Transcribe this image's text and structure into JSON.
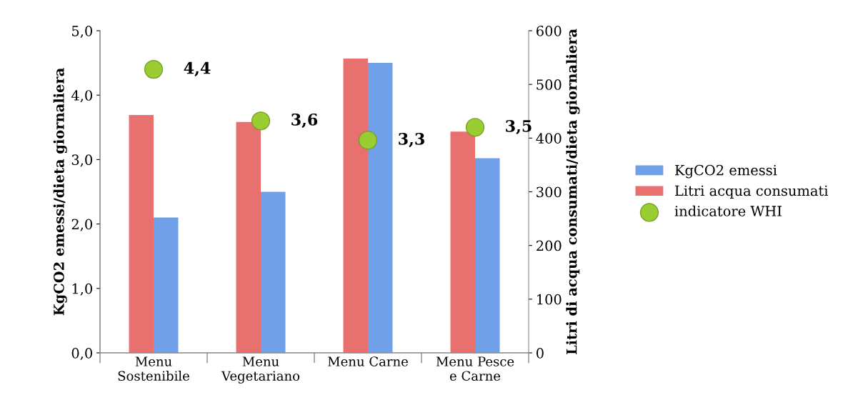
{
  "chart_data": {
    "type": "bar",
    "categories": [
      "Menu\nSostenibile",
      "Menu\nVegetariano",
      "Menu Carne",
      "Menu Pesce\ne Carne"
    ],
    "series": [
      {
        "name": "KgCO2 emessi",
        "color": "#6fa0e8",
        "values": [
          2.1,
          2.5,
          4.5,
          3.02
        ]
      },
      {
        "name": "Litri acqua consumati",
        "color": "#e8706e",
        "values": [
          443,
          430,
          548,
          412
        ],
        "axis": "y2"
      },
      {
        "name": "indicatore WHI",
        "type": "scatter",
        "color": "#9acd32",
        "values": [
          4.4,
          3.6,
          3.3,
          3.5
        ],
        "value_labels": [
          "4,4",
          "3,6",
          "3,3",
          "3,5"
        ]
      }
    ],
    "ylabel": "KgCO2 emessi/dieta giornaliera",
    "y2label": "Litri di acqua consumati/dieta giornaliera",
    "ylim": [
      0,
      5
    ],
    "yticks": [
      {
        "value": 0,
        "label": "0,0"
      },
      {
        "value": 1,
        "label": "1,0"
      },
      {
        "value": 2,
        "label": "2,0"
      },
      {
        "value": 3,
        "label": "3,0"
      },
      {
        "value": 4,
        "label": "4,0"
      },
      {
        "value": 5,
        "label": "5,0"
      }
    ],
    "y2lim": [
      0,
      600
    ],
    "y2ticks": [
      0,
      100,
      200,
      300,
      400,
      500,
      600
    ],
    "legend": "right",
    "grid": false,
    "marker": "circle"
  }
}
